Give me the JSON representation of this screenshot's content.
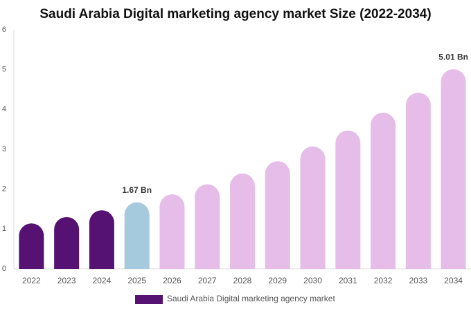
{
  "chart_data": {
    "type": "bar",
    "title": "Saudi Arabia Digital marketing agency market Size (2022-2034)",
    "categories": [
      "2022",
      "2023",
      "2024",
      "2025",
      "2026",
      "2027",
      "2028",
      "2029",
      "2030",
      "2031",
      "2032",
      "2033",
      "2034"
    ],
    "series": [
      {
        "name": "Saudi Arabia Digital marketing agency market",
        "color": "#561273",
        "values": [
          1.14,
          1.3,
          1.47,
          1.67,
          1.87,
          2.12,
          2.39,
          2.7,
          3.07,
          3.47,
          3.92,
          4.42,
          5.01
        ],
        "value_labels": [
          null,
          null,
          null,
          "1.67 Bn",
          null,
          null,
          null,
          null,
          null,
          null,
          null,
          null,
          "5.01 Bn"
        ],
        "colors": [
          "#561273",
          "#561273",
          "#561273",
          "#a6cadd",
          "#e6bde9",
          "#e6bde9",
          "#e6bde9",
          "#e6bde9",
          "#e6bde9",
          "#e6bde9",
          "#e6bde9",
          "#e6bde9",
          "#e6bde9"
        ]
      }
    ],
    "ylim": [
      0,
      6
    ],
    "yticks": [
      0,
      1,
      2,
      3,
      4,
      5,
      6
    ],
    "grid": false
  }
}
